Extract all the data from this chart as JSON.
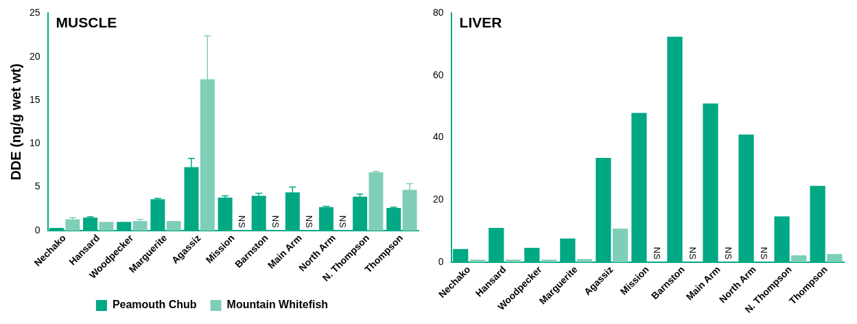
{
  "chart_data": [
    {
      "type": "bar",
      "title": "MUSCLE",
      "ylabel": "DDE (ng/g wet wt)",
      "categories": [
        "Nechako",
        "Hansard",
        "Woodpecker",
        "Marguerite",
        "Agassiz",
        "Mission",
        "Barnston",
        "Main Arm",
        "North Arm",
        "N. Thompson",
        "Thompson"
      ],
      "series": [
        {
          "name": "Peamouth Chub",
          "color": "#00a884",
          "values": [
            0.3,
            1.5,
            1.0,
            3.6,
            7.3,
            3.8,
            4.0,
            4.4,
            2.7,
            3.9,
            2.6
          ],
          "errors": [
            null,
            0.1,
            null,
            0.1,
            1.0,
            0.2,
            0.3,
            0.6,
            0.1,
            0.3,
            0.1
          ]
        },
        {
          "name": "Mountain Whitefish",
          "color": "#7fcfb8",
          "values": [
            1.3,
            1.0,
            1.1,
            1.1,
            17.4,
            null,
            null,
            null,
            null,
            6.7,
            4.7
          ],
          "errors": [
            0.2,
            null,
            0.2,
            null,
            5.0,
            null,
            null,
            null,
            null,
            0.1,
            0.7
          ],
          "value_labels": [
            null,
            null,
            null,
            null,
            null,
            "NS",
            "NS",
            "NS",
            "NS",
            null,
            null
          ]
        }
      ],
      "ylim": [
        0,
        25
      ],
      "yticks": [
        0,
        5,
        10,
        15,
        20,
        25
      ],
      "grid": false,
      "legend": "bottom"
    },
    {
      "type": "bar",
      "title": "LIVER",
      "categories": [
        "Nechako",
        "Hansard",
        "Woodpecker",
        "Marguerite",
        "Agassiz",
        "Mission",
        "Barnston",
        "Main Arm",
        "North Arm",
        "N. Thompson",
        "Thompson"
      ],
      "series": [
        {
          "color": "#00a884",
          "values": [
            4.2,
            11.0,
            4.6,
            7.6,
            33.5,
            48.0,
            72.5,
            51.0,
            41.0,
            14.7,
            24.5
          ]
        },
        {
          "color": "#7fcfb8",
          "values": [
            0.8,
            0.8,
            0.8,
            1.0,
            10.8,
            null,
            null,
            null,
            null,
            2.2,
            2.6
          ],
          "value_labels": [
            null,
            null,
            null,
            null,
            null,
            "NS",
            "NS",
            "NS",
            "NS",
            null,
            null
          ]
        }
      ],
      "ylim": [
        0,
        80
      ],
      "yticks": [
        0,
        20,
        40,
        60,
        80
      ],
      "grid": false
    }
  ]
}
